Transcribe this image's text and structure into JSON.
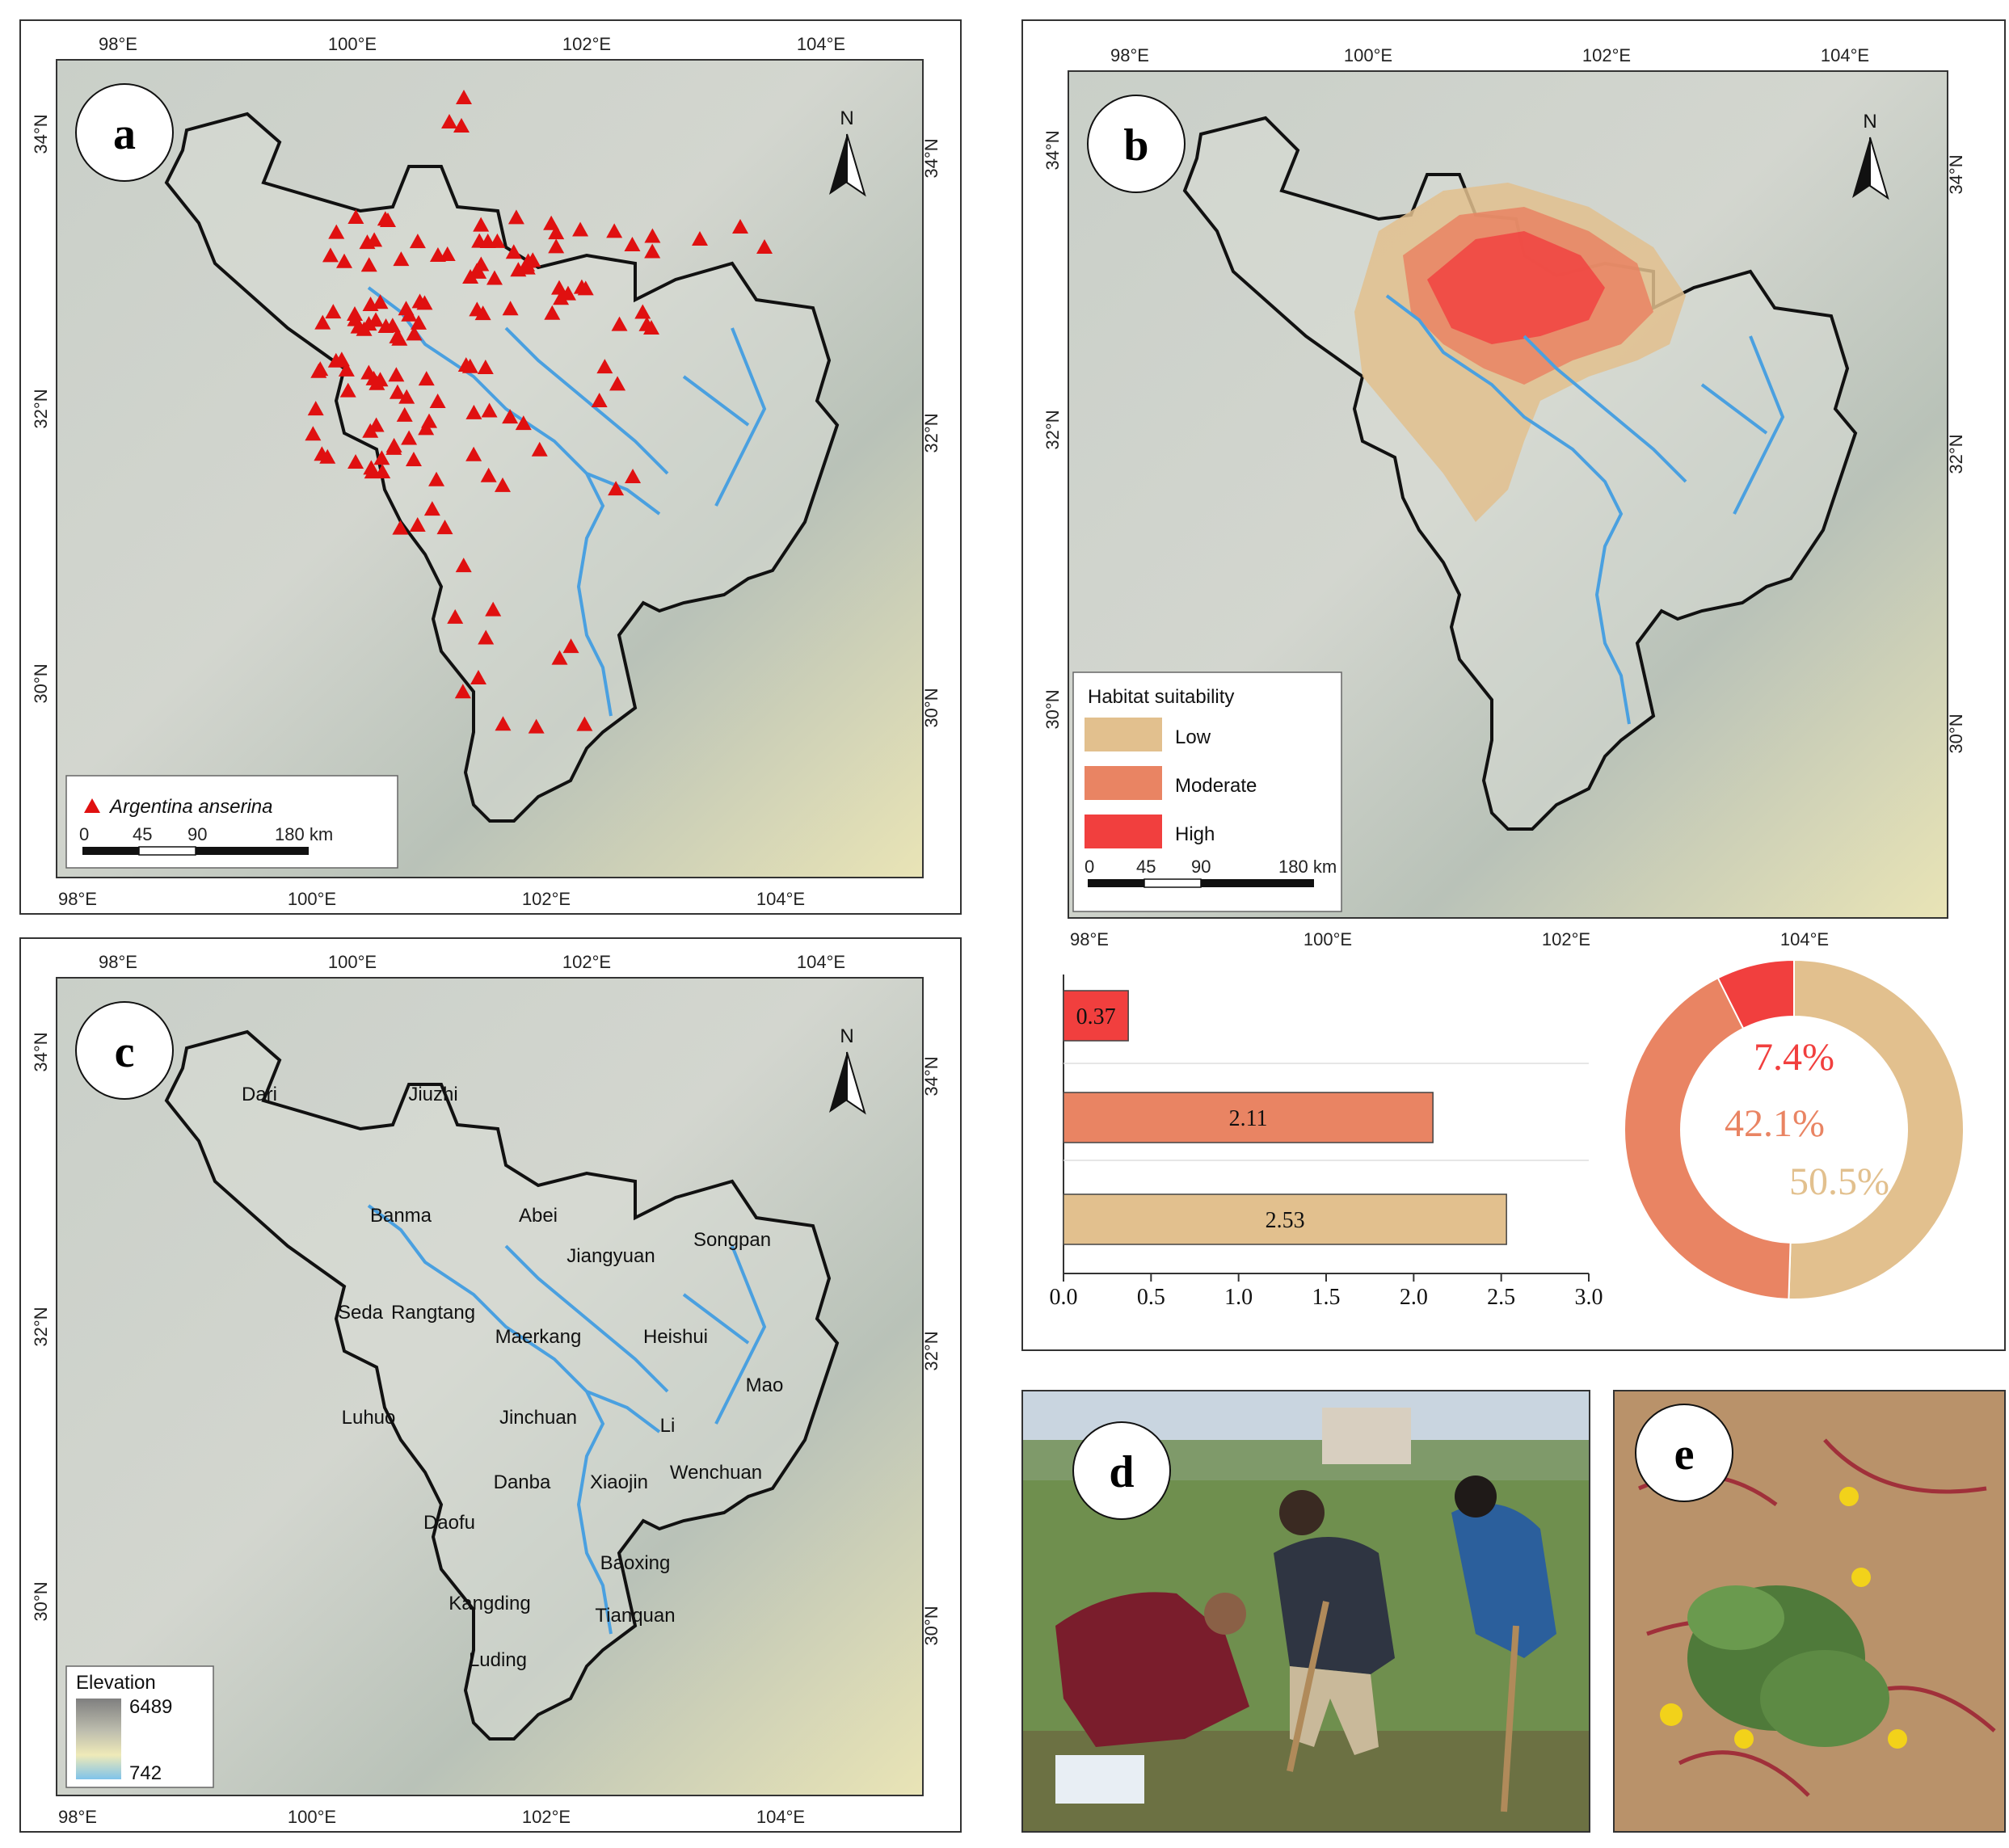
{
  "colors": {
    "terrain": "#cdd3cc",
    "low": "#e2c08e",
    "moderate": "#e98463",
    "high": "#f13f3e",
    "occurrence": "#e01010",
    "river": "#4aa0e0",
    "boundary": "#111111"
  },
  "map_axes": {
    "top_ticks": [
      "98°E",
      "100°E",
      "102°E",
      "104°E"
    ],
    "bottom_ticks": [
      "98°E",
      "100°E",
      "102°E",
      "104°E"
    ],
    "left_ticks": [
      "34°N",
      "32°N",
      "30°N"
    ],
    "right_ticks": [
      "34°N",
      "32°N",
      "30°N"
    ]
  },
  "panel_a": {
    "letter": "a",
    "north": "N",
    "legend_label": "Argentina anserina",
    "scale": [
      "0",
      "45",
      "90",
      "180 km"
    ]
  },
  "panel_b": {
    "letter": "b",
    "north": "N",
    "legend_title": "Habitat suitability",
    "legend_items": [
      "Low",
      "Moderate",
      "High"
    ],
    "scale": [
      "0",
      "45",
      "90",
      "180 km"
    ]
  },
  "panel_c": {
    "letter": "c",
    "north": "N",
    "elevation_title": "Elevation",
    "elevation_max": "6489",
    "elevation_min": "742",
    "counties": [
      "Dari",
      "Jiuzhi",
      "Banma",
      "Abei",
      "Jiangyuan",
      "Songpan",
      "Seda",
      "Rangtang",
      "Maerkang",
      "Heishui",
      "Mao",
      "Luhuo",
      "Jinchuan",
      "Li",
      "Danba",
      "Xiaojin",
      "Wenchuan",
      "Daofu",
      "Baoxing",
      "Kangding",
      "Tianquan",
      "Luding"
    ]
  },
  "panel_d": {
    "letter": "d",
    "icon": "field-photo-people-digging"
  },
  "panel_e": {
    "letter": "e",
    "icon": "plant-photo-argentina-anserina"
  },
  "chart_data": [
    {
      "type": "bar",
      "orientation": "horizontal",
      "categories": [
        "High",
        "Moderate",
        "Low"
      ],
      "values": [
        0.37,
        2.11,
        2.53
      ],
      "value_labels": [
        "0.37",
        "2.11",
        "2.53"
      ],
      "x_ticks": [
        "0.0",
        "0.5",
        "1.0",
        "1.5",
        "2.0",
        "2.5",
        "3.0"
      ],
      "xlim": [
        0,
        3.0
      ],
      "colors": [
        "#f13f3e",
        "#e98463",
        "#e2c08e"
      ]
    },
    {
      "type": "pie",
      "donut": true,
      "categories": [
        "High",
        "Moderate",
        "Low"
      ],
      "values": [
        7.4,
        42.1,
        50.5
      ],
      "labels": [
        "7.4%",
        "42.1%",
        "50.5%"
      ],
      "colors": [
        "#f13f3e",
        "#e98463",
        "#e2c08e"
      ]
    }
  ]
}
